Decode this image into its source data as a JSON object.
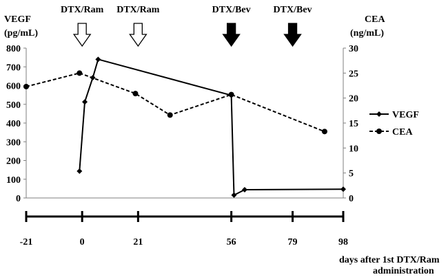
{
  "chart_data": {
    "type": "line",
    "title": "",
    "left_axis": {
      "label_line1": "VEGF",
      "label_line2": "(pg/mL)",
      "range": [
        0,
        800
      ],
      "ticks": [
        "0",
        "100",
        "200",
        "300",
        "400",
        "500",
        "600",
        "700",
        "800"
      ]
    },
    "right_axis": {
      "label_line1": "CEA",
      "label_line2": "(ng/mL)",
      "range": [
        0,
        30
      ],
      "ticks": [
        "0",
        "5",
        "10",
        "15",
        "20",
        "25",
        "30"
      ]
    },
    "x_axis": {
      "range": [
        -21,
        98
      ],
      "ticks": [
        {
          "value": -21,
          "label": "-21"
        },
        {
          "value": 0,
          "label": "0"
        },
        {
          "value": 21,
          "label": "21"
        },
        {
          "value": 56,
          "label": "56"
        },
        {
          "value": 79,
          "label": "79"
        },
        {
          "value": 98,
          "label": "98"
        }
      ],
      "caption_line1": "days after 1st DTX/Ram",
      "caption_line2": "administration"
    },
    "treatments": [
      {
        "day": 0,
        "label": "DTX/Ram",
        "style": "open"
      },
      {
        "day": 21,
        "label": "DTX/Ram",
        "style": "open"
      },
      {
        "day": 56,
        "label": "DTX/Bev",
        "style": "filled"
      },
      {
        "day": 79,
        "label": "DTX/Bev",
        "style": "filled"
      }
    ],
    "series": [
      {
        "name": "VEGF",
        "axis": "left",
        "line": "solid",
        "marker": "diamond",
        "points": [
          [
            -1,
            143
          ],
          [
            1,
            513
          ],
          [
            4,
            642
          ],
          [
            6,
            740
          ],
          [
            56,
            548
          ],
          [
            57,
            15
          ],
          [
            61,
            44
          ],
          [
            98,
            47
          ]
        ]
      },
      {
        "name": "CEA",
        "axis": "right",
        "line": "dashed",
        "marker": "circle",
        "points": [
          [
            -21,
            22.3
          ],
          [
            -1,
            25
          ],
          [
            20,
            20.9
          ],
          [
            33,
            16.6
          ],
          [
            56,
            20.7
          ],
          [
            91,
            13.3
          ]
        ]
      }
    ],
    "legend": {
      "position": "right",
      "entries": [
        "VEGF",
        "CEA"
      ]
    }
  }
}
